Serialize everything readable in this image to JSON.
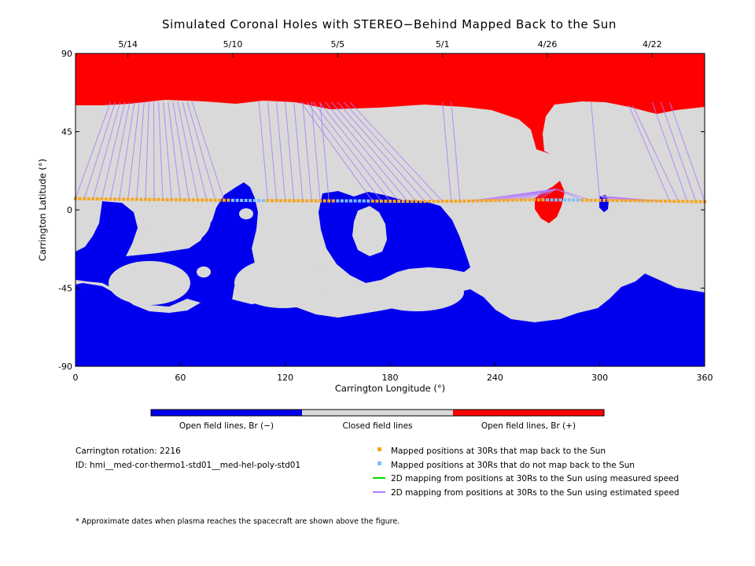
{
  "chart_data": {
    "type": "heatmap",
    "title": "Simulated Coronal Holes with STEREO−Behind Mapped Back to the Sun",
    "xlabel": "Carrington Longitude (°)",
    "ylabel": "Carrington Latitude (°)",
    "xlim": [
      0,
      360
    ],
    "ylim": [
      -90,
      90
    ],
    "x_ticks": [
      0,
      60,
      120,
      180,
      240,
      300,
      360
    ],
    "y_ticks": [
      90,
      45,
      0,
      -45,
      -90
    ],
    "top_date_ticks": [
      {
        "lon": 30,
        "label": "5/14"
      },
      {
        "lon": 90,
        "label": "5/10"
      },
      {
        "lon": 150,
        "label": "5/5"
      },
      {
        "lon": 210,
        "label": "5/1"
      },
      {
        "lon": 270,
        "label": "4/26"
      },
      {
        "lon": 330,
        "label": "4/22"
      }
    ],
    "colorbar": [
      {
        "label": "Open field lines, Br (−)",
        "color": "#0000ee"
      },
      {
        "label": "Closed field lines",
        "color": "#d9d9d9"
      },
      {
        "label": "Open field lines, Br (+)",
        "color": "#ff0000"
      }
    ],
    "info": {
      "rotation": "Carrington rotation: 2216",
      "id": "ID: hmi__med-cor-thermo1-std01__med-hel-poly-std01"
    },
    "legend": [
      {
        "label": "Mapped positions at 30Rs that map back to the Sun",
        "color": "#f5a623",
        "kind": "square"
      },
      {
        "label": "Mapped positions at 30Rs that do not map back to the Sun",
        "color": "#7fbfff",
        "kind": "square"
      },
      {
        "label": "2D mapping from positions at 30Rs to the Sun using measured speed",
        "color": "#00dd00",
        "kind": "line"
      },
      {
        "label": "2D mapping from positions at 30Rs to the Sun using estimated speed",
        "color": "#b07cff",
        "kind": "line"
      }
    ],
    "footnote": "* Approximate dates when plasma reaches the spacecraft are shown above the figure.",
    "series": [
      {
        "kind": "trajectory",
        "x": [
          0,
          20,
          40,
          60,
          80,
          100,
          120,
          140,
          160,
          180,
          200,
          220,
          240,
          260,
          280,
          300,
          320,
          340,
          360
        ],
        "y": [
          6.5,
          6.2,
          6.0,
          5.8,
          5.6,
          5.4,
          5.3,
          5.2,
          5.2,
          5.0,
          4.9,
          5.0,
          5.4,
          5.8,
          5.7,
          5.5,
          5.3,
          5.0,
          4.7
        ],
        "maps_back": [
          true,
          true,
          true,
          true,
          true,
          false,
          true,
          true,
          false,
          true,
          true,
          true,
          true,
          true,
          false,
          true,
          true,
          true,
          true
        ]
      }
    ]
  }
}
